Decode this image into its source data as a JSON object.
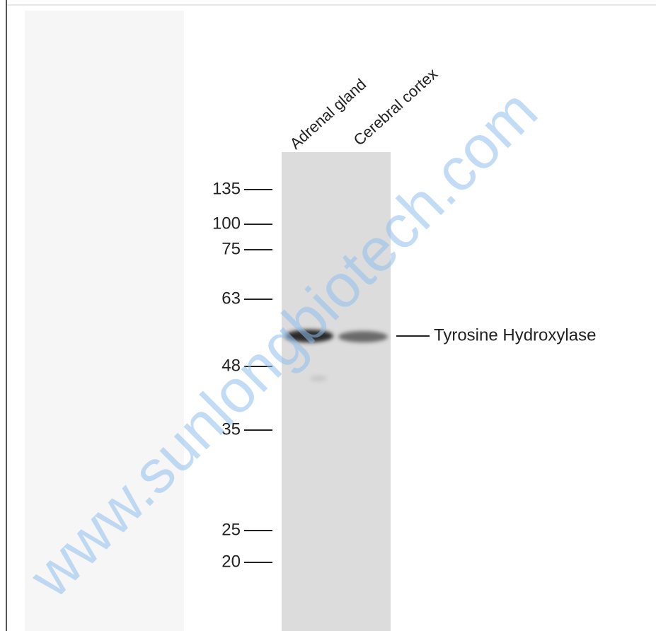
{
  "lanes": [
    "Adrenal gland",
    "Cerebral cortex"
  ],
  "markers": [
    135,
    100,
    75,
    63,
    48,
    35,
    25,
    20
  ],
  "band_label": "Tyrosine Hydroxylase",
  "watermark": "www.sunlongbiotech.com"
}
